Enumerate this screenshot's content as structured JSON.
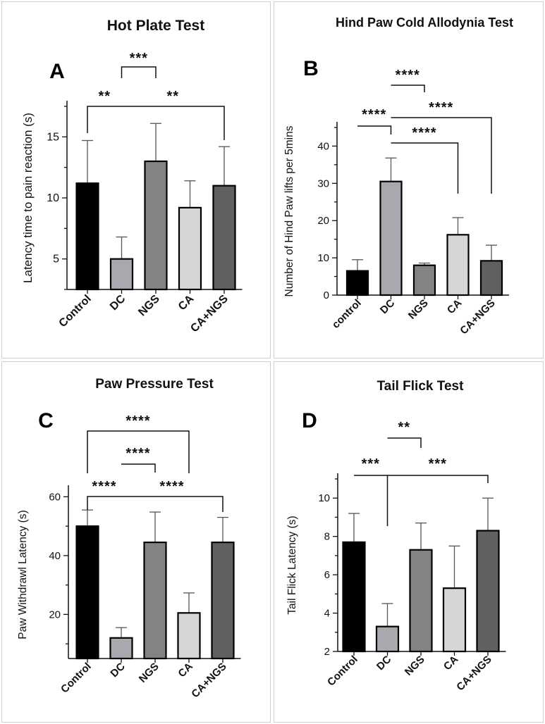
{
  "colors": {
    "black": "#000000",
    "dc_gray": "#a8a8ae",
    "ngs_gray": "#838383",
    "ca_gray": "#d6d6d6",
    "cangs_gray": "#606060"
  },
  "chart_data": [
    {
      "type": "bar",
      "panel_letter": "A",
      "title": "Hot Plate Test",
      "xlabel": "",
      "ylabel": "Latency time to pain reaction (s)",
      "ylim": [
        2.5,
        17.5
      ],
      "yticks": [
        5,
        10,
        15
      ],
      "categories": [
        "Control",
        "DC",
        "NGS",
        "CA",
        "CA+NGS"
      ],
      "values": [
        11.2,
        5.0,
        13.0,
        9.2,
        11.0
      ],
      "errors": [
        3.5,
        1.8,
        3.1,
        2.2,
        3.2
      ],
      "bar_colors": [
        "#000000",
        "#a8a8ae",
        "#838383",
        "#d6d6d6",
        "#606060"
      ],
      "significance": [
        {
          "from": "Control",
          "to": "DC",
          "label": "**"
        },
        {
          "from": "DC",
          "to": "NGS",
          "label": "***"
        },
        {
          "from": "DC",
          "to": "CA+NGS",
          "label": "**"
        }
      ]
    },
    {
      "type": "bar",
      "panel_letter": "B",
      "title": "Hind Paw Cold Allodynia Test",
      "xlabel": "",
      "ylabel": "Number of Hind Paw lifts per 5mins",
      "ylim": [
        0,
        45
      ],
      "yticks": [
        0,
        10,
        20,
        30,
        40
      ],
      "categories": [
        "control",
        "DC",
        "NGS",
        "CA",
        "CA+NGS"
      ],
      "values": [
        6.5,
        30.5,
        8.0,
        16.2,
        9.2
      ],
      "errors": [
        3.0,
        6.3,
        0.6,
        4.6,
        4.2
      ],
      "bar_colors": [
        "#000000",
        "#a8a8ae",
        "#838383",
        "#d6d6d6",
        "#606060"
      ],
      "significance": [
        {
          "from": "control",
          "to": "DC",
          "label": "****"
        },
        {
          "from": "DC",
          "to": "NGS",
          "label": "****"
        },
        {
          "from": "DC",
          "to": "CA",
          "label": "****"
        },
        {
          "from": "DC",
          "to": "CA+NGS",
          "label": "****"
        }
      ]
    },
    {
      "type": "bar",
      "panel_letter": "C",
      "title": "Paw Pressure Test",
      "xlabel": "",
      "ylabel": "Paw Withdrawl Latency (s)",
      "ylim": [
        5,
        62
      ],
      "yticks": [
        20,
        40,
        60
      ],
      "categories": [
        "Control",
        "DC",
        "NGS",
        "CA",
        "CA+NGS"
      ],
      "values": [
        50.0,
        12.0,
        44.5,
        20.5,
        44.5
      ],
      "errors": [
        5.5,
        3.5,
        10.3,
        6.8,
        8.5
      ],
      "bar_colors": [
        "#000000",
        "#a8a8ae",
        "#838383",
        "#d6d6d6",
        "#606060"
      ],
      "significance": [
        {
          "from": "Control",
          "to": "DC",
          "label": "****"
        },
        {
          "from": "DC",
          "to": "NGS",
          "label": "****"
        },
        {
          "from": "Control",
          "to": "CA",
          "label": "****"
        },
        {
          "from": "DC",
          "to": "CA+NGS",
          "label": "****"
        }
      ]
    },
    {
      "type": "bar",
      "panel_letter": "D",
      "title": "Tail Flick Test",
      "xlabel": "",
      "ylabel": "Tail Flick Latency (s)",
      "ylim": [
        2,
        11
      ],
      "yticks": [
        2,
        4,
        6,
        8,
        10
      ],
      "categories": [
        "Control",
        "DC",
        "NGS",
        "CA",
        "CA+NGS"
      ],
      "values": [
        7.7,
        3.3,
        7.3,
        5.3,
        8.3
      ],
      "errors": [
        1.5,
        1.2,
        1.4,
        2.2,
        1.7
      ],
      "bar_colors": [
        "#000000",
        "#a8a8ae",
        "#838383",
        "#d6d6d6",
        "#606060"
      ],
      "significance": [
        {
          "from": "Control",
          "to": "DC",
          "label": "***"
        },
        {
          "from": "DC",
          "to": "NGS",
          "label": "**"
        },
        {
          "from": "DC",
          "to": "CA+NGS",
          "label": "***"
        }
      ]
    }
  ]
}
